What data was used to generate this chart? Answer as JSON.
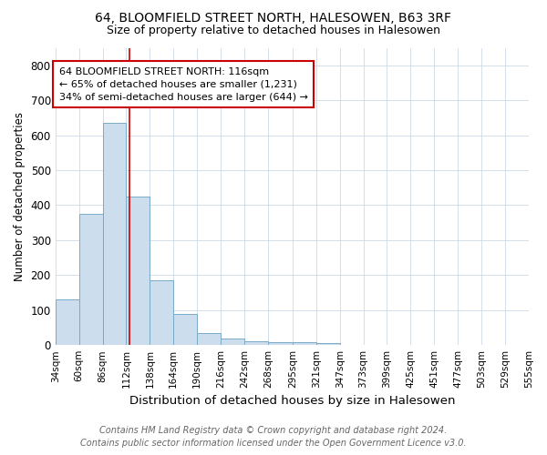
{
  "title1": "64, BLOOMFIELD STREET NORTH, HALESOWEN, B63 3RF",
  "title2": "Size of property relative to detached houses in Halesowen",
  "xlabel": "Distribution of detached houses by size in Halesowen",
  "ylabel": "Number of detached properties",
  "bar_values": [
    130,
    375,
    635,
    425,
    185,
    90,
    35,
    18,
    10,
    7,
    8,
    5,
    0,
    0,
    0,
    0,
    0,
    0,
    0,
    0
  ],
  "bin_edges": [
    34,
    60,
    86,
    112,
    138,
    164,
    190,
    216,
    242,
    268,
    295,
    321,
    347,
    373,
    399,
    425,
    451,
    477,
    503,
    529,
    555
  ],
  "tick_labels": [
    "34sqm",
    "60sqm",
    "86sqm",
    "112sqm",
    "138sqm",
    "164sqm",
    "190sqm",
    "216sqm",
    "242sqm",
    "268sqm",
    "295sqm",
    "321sqm",
    "347sqm",
    "373sqm",
    "399sqm",
    "425sqm",
    "451sqm",
    "477sqm",
    "503sqm",
    "529sqm",
    "555sqm"
  ],
  "bar_color": "#ccdded",
  "bar_edge_color": "#7aaac8",
  "red_line_x": 116,
  "ylim": [
    0,
    850
  ],
  "yticks": [
    0,
    100,
    200,
    300,
    400,
    500,
    600,
    700,
    800
  ],
  "annotation_title": "64 BLOOMFIELD STREET NORTH: 116sqm",
  "annotation_line1": "← 65% of detached houses are smaller (1,231)",
  "annotation_line2": "34% of semi-detached houses are larger (644) →",
  "annotation_box_color": "#ffffff",
  "annotation_box_edge": "#cc0000",
  "footer1": "Contains HM Land Registry data © Crown copyright and database right 2024.",
  "footer2": "Contains public sector information licensed under the Open Government Licence v3.0.",
  "title1_fontsize": 10,
  "title2_fontsize": 9,
  "xlabel_fontsize": 9.5,
  "ylabel_fontsize": 8.5,
  "tick_fontsize": 7.5,
  "annotation_fontsize": 8,
  "footer_fontsize": 7
}
